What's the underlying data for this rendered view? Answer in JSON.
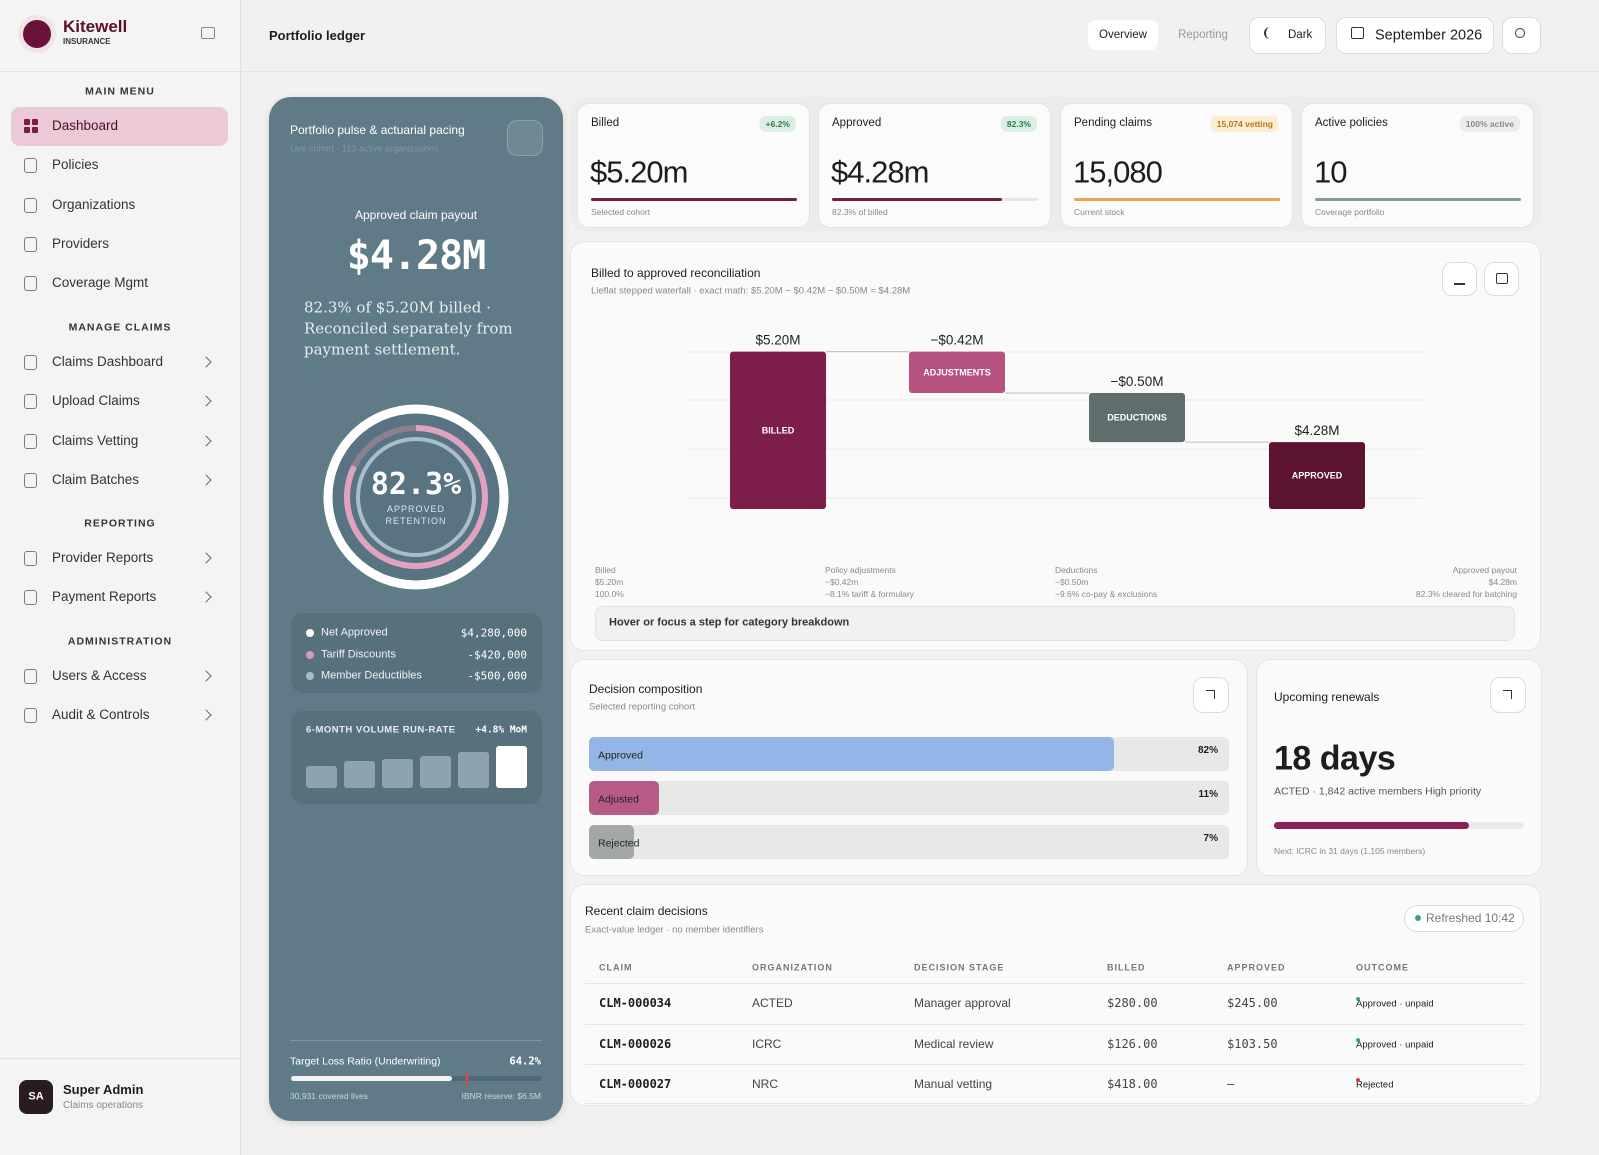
{
  "sidebar": {
    "brand": "Kitewell",
    "brand_sub": "INSURANCE",
    "sections": [
      {
        "title": "MAIN MENU",
        "items": [
          "Dashboard",
          "Policies",
          "Organizations",
          "Providers",
          "Coverage Mgmt"
        ]
      },
      {
        "title": "MANAGE CLAIMS",
        "items": [
          "Claims Dashboard",
          "Upload Claims",
          "Claims Vetting",
          "Claim Batches"
        ]
      },
      {
        "title": "REPORTING",
        "items": [
          "Provider Reports",
          "Payment Reports"
        ]
      },
      {
        "title": "ADMINISTRATION",
        "items": [
          "Users & Access",
          "Audit & Controls"
        ]
      }
    ],
    "user": {
      "initials": "SA",
      "name": "Super Admin",
      "role": "Claims operations"
    }
  },
  "header": {
    "title": "Portfolio ledger",
    "tabs": [
      "Overview",
      "Reporting"
    ],
    "theme": "Dark",
    "date": "September 2026"
  },
  "pulse": {
    "title": "Portfolio pulse & actuarial pacing",
    "subtitle": "Live cohort · 113 active organizations",
    "payout_label": "Approved claim payout",
    "payout": "$4.28M",
    "note": "82.3% of $5.20M billed · Reconciled separately from payment settlement.",
    "ring": {
      "value": 82.3,
      "value_label": "82.3%",
      "caption": "APPROVED RETENTION"
    },
    "legend": [
      {
        "name": "Net Approved",
        "value": "$4,280,000",
        "color": "#ffffff"
      },
      {
        "name": "Tariff Discounts",
        "value": "-$420,000",
        "color": "#d99ab8"
      },
      {
        "name": "Member Deductibles",
        "value": "-$500,000",
        "color": "#a9bcc6"
      }
    ],
    "runrate": {
      "title": "6-MONTH VOLUME RUN-RATE",
      "change": "+4.8% MoM",
      "values": [
        22,
        27,
        29,
        32,
        36,
        42
      ],
      "ylim": [
        0,
        42
      ]
    },
    "loss": {
      "title": "Target Loss Ratio (Underwriting)",
      "value": 64.2,
      "value_label": "64.2%",
      "target": 70,
      "lives": "30,931 covered lives",
      "reserve": "IBNR reserve: $6.5M"
    }
  },
  "kpis": [
    {
      "title": "Billed",
      "badge": "+6.2%",
      "value": "$5.20m",
      "progress": 100,
      "caption": "Selected cohort",
      "color": "#7a1d45",
      "badge_bg": "#dcefe4",
      "badge_fg": "#2f7a52"
    },
    {
      "title": "Approved",
      "badge": "82.3%",
      "value": "$4.28m",
      "progress": 82.3,
      "caption": "82.3% of billed",
      "color": "#7a1d45",
      "badge_bg": "#dcefe4",
      "badge_fg": "#2f7a52"
    },
    {
      "title": "Pending claims",
      "badge": "15,074 vetting",
      "value": "15,080",
      "progress": 100,
      "caption": "Current stock",
      "color": "#e8a54b",
      "badge_bg": "#fbecd2",
      "badge_fg": "#b7761c"
    },
    {
      "title": "Active policies",
      "badge": "100% active",
      "value": "10",
      "progress": 100,
      "caption": "Coverage portfolio",
      "color": "#8a9a98",
      "badge_bg": "#ececec",
      "badge_fg": "#8a8a8a"
    }
  ],
  "waterfall": {
    "title": "Billed to approved reconciliation",
    "subtitle": "Lieflat stepped waterfall · exact math: $5.20M − $0.42M − $0.50M = $4.28M",
    "categories": [
      "BILLED",
      "ADJUSTMENTS",
      "DEDUCTIONS",
      "APPROVED"
    ],
    "values": [
      5.2,
      -0.42,
      -0.5,
      4.28
    ],
    "value_labels": [
      "$5.20M",
      "−$0.42M",
      "−$0.50M",
      "$4.28M"
    ],
    "colors": [
      "#7d1d4a",
      "#b5527f",
      "#5f6e6d",
      "#5c1231"
    ],
    "ylim": [
      3.6,
      5.4
    ],
    "footnotes": [
      [
        "Billed",
        "$5.20m",
        "100.0%"
      ],
      [
        "Policy adjustments",
        "−$0.42m",
        "−8.1% tariff & formulary"
      ],
      [
        "Deductions",
        "−$0.50m",
        "−9.6% co-pay & exclusions"
      ],
      [
        "Approved payout",
        "$4.28m",
        "82.3% cleared for batching"
      ]
    ],
    "hint": "Hover or focus a step for category breakdown"
  },
  "composition": {
    "title": "Decision composition",
    "subtitle": "Selected reporting cohort",
    "categories": [
      "Approved",
      "Adjusted",
      "Rejected"
    ],
    "values": [
      82,
      11,
      7
    ],
    "value_labels": [
      "82%",
      "11%",
      "7%"
    ],
    "colors": [
      "#93b6e6",
      "#b85a86",
      "#a3a7a8"
    ]
  },
  "renewals": {
    "title": "Upcoming renewals",
    "value": "18 days",
    "detail": "ACTED · 1,842 active members High priority",
    "progress": 78,
    "note": "Next: ICRC in 31 days (1,105 members)"
  },
  "table": {
    "title": "Recent claim decisions",
    "subtitle": "Exact-value ledger · no member identifiers",
    "status": "Refreshed 10:42",
    "columns": [
      "CLAIM",
      "ORGANIZATION",
      "DECISION STAGE",
      "BILLED",
      "APPROVED",
      "OUTCOME"
    ],
    "rows": [
      [
        "CLM-000034",
        "ACTED",
        "Manager approval",
        "$280.00",
        "$245.00",
        "Approved · unpaid"
      ],
      [
        "CLM-000026",
        "ICRC",
        "Medical review",
        "$126.00",
        "$103.50",
        "Approved · unpaid"
      ],
      [
        "CLM-000027",
        "NRC",
        "Manual vetting",
        "$418.00",
        "–",
        "Rejected"
      ]
    ],
    "outcome_colors": [
      "#3aa57a",
      "#3aa57a",
      "#d0454c"
    ]
  }
}
